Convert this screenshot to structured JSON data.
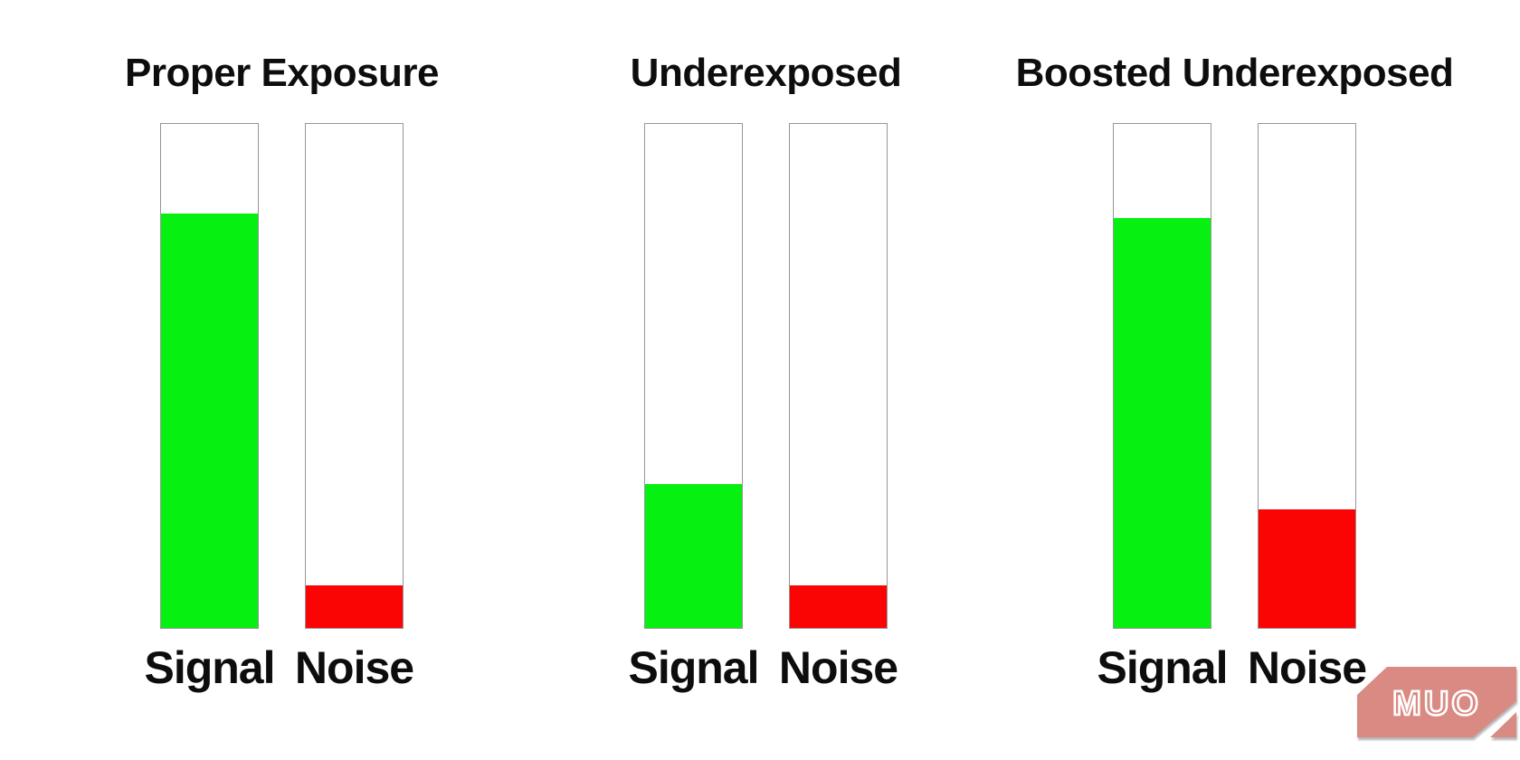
{
  "chart_data": {
    "type": "bar",
    "title": "",
    "xlabel": "",
    "ylabel": "",
    "axes": "none",
    "grid": false,
    "legend": false,
    "categories": [
      "Signal",
      "Noise"
    ],
    "value_unit": "percent of bar container filled",
    "groups": [
      {
        "title": "Proper Exposure",
        "bars": [
          {
            "label": "Signal",
            "value_pct": 82.3,
            "color_key": "signal"
          },
          {
            "label": "Noise",
            "value_pct": 8.4,
            "color_key": "noise"
          }
        ]
      },
      {
        "title": "Underexposed",
        "bars": [
          {
            "label": "Signal",
            "value_pct": 28.6,
            "color_key": "signal"
          },
          {
            "label": "Noise",
            "value_pct": 8.4,
            "color_key": "noise"
          }
        ]
      },
      {
        "title": "Boosted Underexposed",
        "bars": [
          {
            "label": "Signal",
            "value_pct": 81.4,
            "color_key": "signal"
          },
          {
            "label": "Noise",
            "value_pct": 23.6,
            "color_key": "noise"
          }
        ]
      }
    ],
    "colors": {
      "signal": "#06f011",
      "noise": "#fa0404",
      "bar_border": "#969696",
      "text": "#0d0d0d"
    }
  },
  "watermark": {
    "text": "MUO",
    "color": "#d98a82"
  }
}
